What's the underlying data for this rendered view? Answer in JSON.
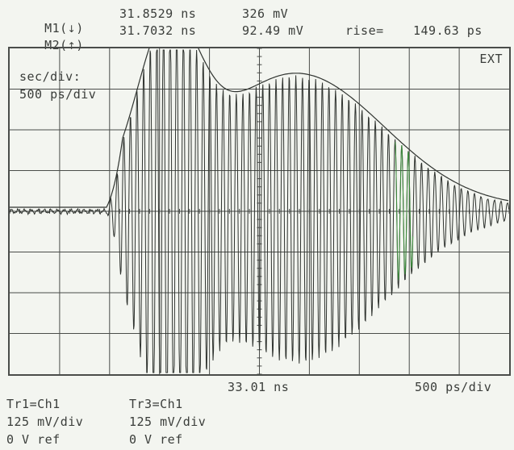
{
  "markers": {
    "m1": {
      "label": "M1(",
      "arrow": "↓",
      "close": ")",
      "time": "31.8529 ns",
      "voltage": "326 mV"
    },
    "m2": {
      "label": "M2(",
      "arrow": "↑",
      "close": ")",
      "time": "31.7032 ns",
      "voltage": "92.49 mV"
    },
    "rise_label": "rise=",
    "rise_value": "149.63 ps"
  },
  "trigger": "EXT",
  "timebase": {
    "label": "sec/div:",
    "value": "500 ps/div"
  },
  "axis": {
    "center_time": "33.01 ns",
    "timebase": "500 ps/div"
  },
  "traces": [
    {
      "id": "Tr1=Ch1",
      "scale": "125 mV/div",
      "ref": "0 V ref"
    },
    {
      "id": "Tr3=Ch1",
      "scale": "125 mV/div",
      "ref": "0 V ref"
    }
  ],
  "colors": {
    "grid": "#4a4d4a",
    "trace": "#2f332f",
    "accent_trace": "#3a8a3a",
    "background": "#f3f5f0"
  }
}
